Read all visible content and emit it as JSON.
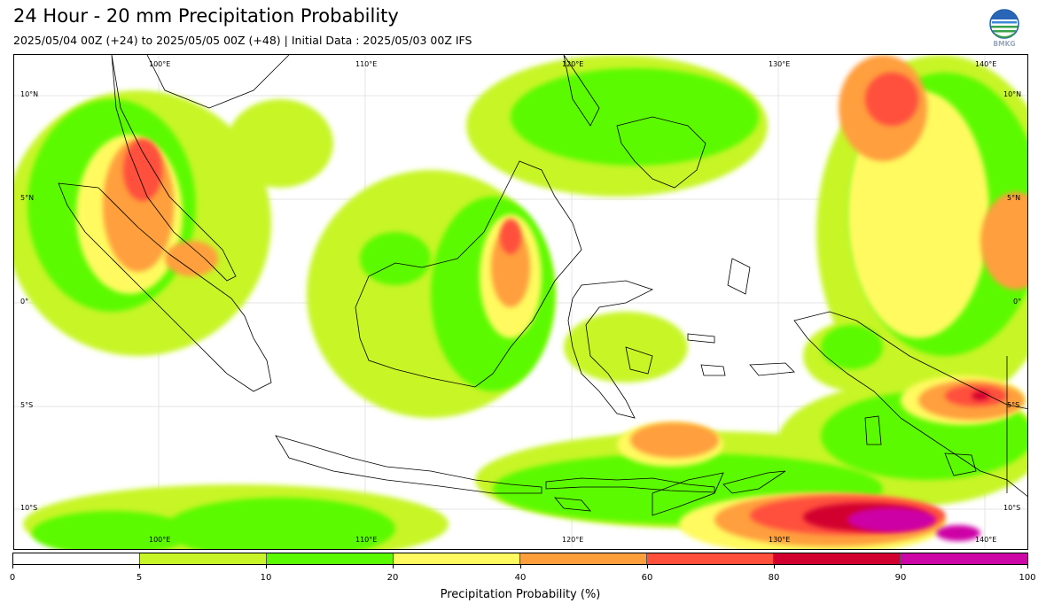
{
  "header": {
    "title": "24 Hour - 20 mm Precipitation Probability",
    "subtitle": "2025/05/04 00Z (+24) to 2025/05/05 00Z (+48) | Initial Data : 2025/05/03 00Z IFS",
    "logo_icon": "bmkg-logo-icon",
    "logo_text": "BMKG"
  },
  "map": {
    "lon_labels": [
      "100°E",
      "110°E",
      "120°E",
      "130°E",
      "140°E"
    ],
    "lat_labels": [
      "10°N",
      "5°N",
      "0°",
      "5°S",
      "10°S"
    ],
    "features": {
      "coastline": "Indonesia / Maritime Southeast Asia",
      "gridlines": true
    }
  },
  "colorbar": {
    "ticks": [
      "0",
      "5",
      "10",
      "20",
      "40",
      "60",
      "80",
      "90",
      "100"
    ],
    "colors": [
      "#ffffff",
      "#c8f527",
      "#5bfa00",
      "#fffa5f",
      "#ff9f3c",
      "#ff503c",
      "#d2002f",
      "#cd06a6"
    ],
    "label": "Precipitation Probability (%)"
  }
}
